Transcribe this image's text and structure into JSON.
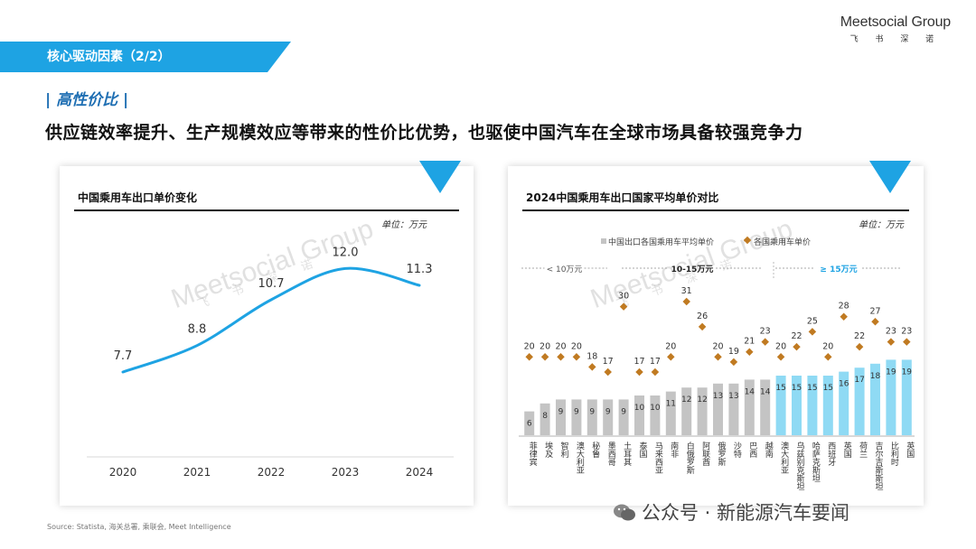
{
  "banner": {
    "title": "核心驱动因素（2/2）",
    "color": "#1ea3e3"
  },
  "brand": {
    "name": "Meetsocial Group",
    "sub": "飞 书 深 诺"
  },
  "section": {
    "tag": "| 高性价比 |"
  },
  "headline": "供应链效率提升、生产规模效应等带来的性价比优势，也驱使中国汽车在全球市场具备较强竞争力",
  "watermark": {
    "text": "Meetsocial Group",
    "sub": "飞 书 深 诺"
  },
  "chart_data": [
    {
      "type": "line",
      "title": "中国乘用车出口单价变化",
      "unit": "单位：万元",
      "x": [
        "2020",
        "2021",
        "2022",
        "2023",
        "2024"
      ],
      "values": [
        7.7,
        8.8,
        10.7,
        12.0,
        11.3
      ],
      "ylim": [
        5,
        14
      ],
      "color": "#1ea3e3"
    },
    {
      "type": "bar",
      "title": "2024中国乘用车出口国家平均单价对比",
      "unit": "单位：万元",
      "legend": {
        "bar": "中国出口各国乘用车平均单价",
        "dot": "各国乘用车单价"
      },
      "groups": [
        {
          "label": "< 10万元"
        },
        {
          "label": "10-15万元"
        },
        {
          "label": "≥ 15万元"
        }
      ],
      "categories": [
        "菲律宾",
        "埃及",
        "智利",
        "澳大利亚",
        "秘鲁",
        "墨西哥",
        "土耳其",
        "泰国",
        "马来西亚",
        "南非",
        "白俄罗斯",
        "阿联酋",
        "俄罗斯",
        "沙特",
        "巴西",
        "越南",
        "澳大利亚",
        "乌兹别克斯坦",
        "哈萨克斯坦",
        "西班牙",
        "英国",
        "荷兰",
        "吉尔吉斯斯坦",
        "比利时",
        "英国"
      ],
      "values": [
        6,
        8,
        9,
        9,
        9,
        9,
        9,
        10,
        10,
        11,
        12,
        12,
        13,
        13,
        14,
        14,
        15,
        15,
        15,
        15,
        16,
        17,
        18,
        19,
        19
      ],
      "dots": [
        20,
        20,
        20,
        20,
        18,
        17,
        30,
        17,
        17,
        20,
        31,
        26,
        20,
        19,
        21,
        23,
        20,
        22,
        25,
        20,
        28,
        22,
        27,
        23,
        23
      ],
      "colors": {
        "low": "#c4c4c4",
        "high": "#8fdaf4",
        "dot": "#c07a21"
      }
    }
  ],
  "source": "Source: Statista, 海关总署, 乘联会, Meet Intelligence",
  "wechat": "公众号 · 新能源汽车要闻"
}
